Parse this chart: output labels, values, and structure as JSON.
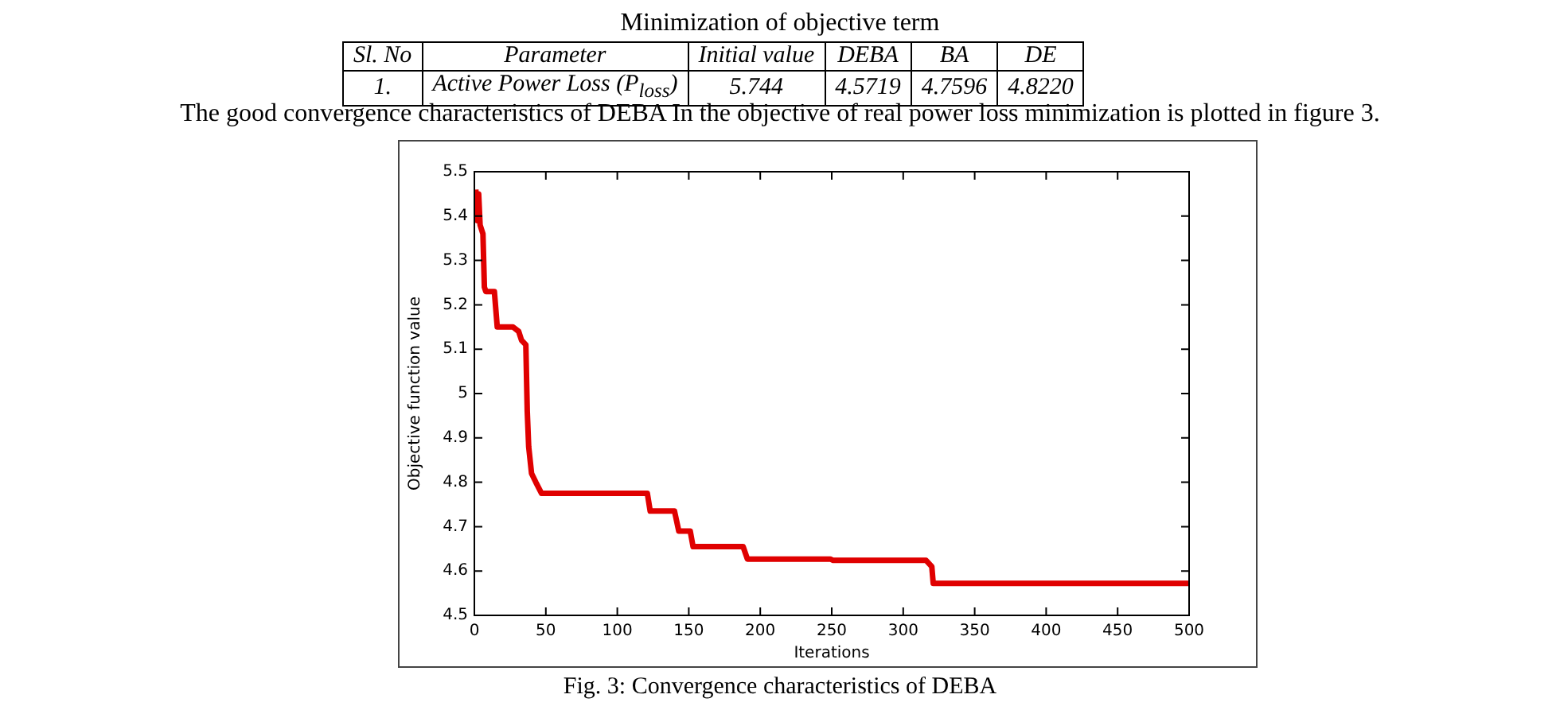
{
  "chart_data": {
    "type": "line",
    "title": "Fig. 3: Convergence characteristics of DEBA",
    "xlabel": "Iterations",
    "ylabel": "Objective function value",
    "annotations": [
      "Minimization of objective term",
      "Sl. No",
      "Parameter",
      "Initial value",
      "DEBA",
      "BA",
      "DE",
      "1.",
      "Active Power Loss (P$_{loss}$)",
      "5.744",
      "4.5719",
      "4.7596",
      "4.8220",
      "The good convergence characteristics of DEBA In the objective of real power loss minimization is plotted in figure 3."
    ],
    "x": [
      1,
      2,
      3,
      4,
      6,
      7,
      8,
      14,
      16,
      27,
      31,
      33,
      36,
      37,
      38,
      40,
      43,
      47,
      121,
      123,
      140,
      143,
      151,
      153,
      188,
      191,
      249,
      251,
      316,
      320,
      321,
      500
    ],
    "series": [
      {
        "color": "#e00000",
        "values": [
          5.46,
          5.39,
          5.45,
          5.38,
          5.36,
          5.24,
          5.23,
          5.23,
          5.15,
          5.15,
          5.14,
          5.12,
          5.11,
          4.96,
          4.88,
          4.82,
          4.8,
          4.775,
          4.775,
          4.735,
          4.735,
          4.69,
          4.69,
          4.655,
          4.655,
          4.627,
          4.627,
          4.624,
          4.624,
          4.61,
          4.572,
          4.572
        ]
      }
    ],
    "xlim": [
      0,
      500
    ],
    "xticks": [
      0,
      50,
      100,
      150,
      200,
      250,
      300,
      350,
      400,
      450,
      500
    ],
    "ylim": [
      4.5,
      5.5
    ],
    "yticks": [
      4.5,
      4.6,
      4.7,
      4.8,
      4.9,
      5,
      5.1,
      5.2,
      5.3,
      5.4,
      5.5
    ],
    "grid": false,
    "legend": false,
    "marker": "none",
    "line_style": "solid"
  }
}
